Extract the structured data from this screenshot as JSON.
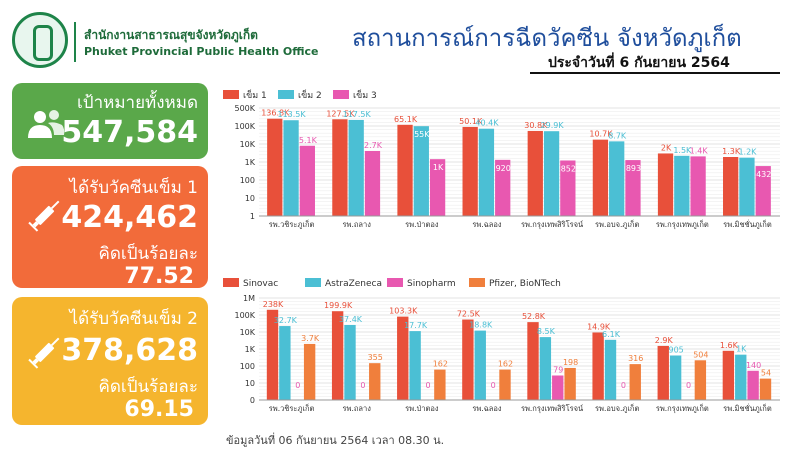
{
  "header": {
    "org_th": "สำนักงานสาธารณสุขจังหวัดภูเก็ต",
    "org_en": "Phuket Provincial Public Health Office",
    "title": "สถานการณ์การฉีดวัคซีน จังหวัดภูเก็ต",
    "subtitle": "ประจำวันที่ 6 กันยายน 2564"
  },
  "cards": {
    "target": {
      "label": "เป้าหมายทั้งหมด",
      "value": "547,584"
    },
    "dose1": {
      "label": "ได้รับวัคซีนเข็ม 1",
      "value": "424,462",
      "pct_label": "คิดเป็นร้อยละ",
      "pct": "77.52"
    },
    "dose2": {
      "label": "ได้รับวัคซีนเข็ม 2",
      "value": "378,628",
      "pct_label": "คิดเป็นร้อยละ",
      "pct": "69.15"
    }
  },
  "footnote": "ข้อมูลวันที่ 06 กันยายน 2564 เวลา 08.30 น.",
  "colors": {
    "green": "#5aa84a",
    "orange": "#f26b3a",
    "yellow": "#f5b52e",
    "red": "#e8503a",
    "cyan": "#4bbfd4",
    "pink": "#e858b0",
    "amber": "#f07f3c"
  },
  "chart_data": [
    {
      "type": "bar",
      "scale": "log",
      "categories": [
        "รพ.วชิระภูเก็ต",
        "รพ.ถลาง",
        "รพ.ป่าตอง",
        "รพ.ฉลอง",
        "รพ.กรุงเทพสิริโรจน์",
        "รพ.อบจ.ภูเก็ต",
        "รพ.กรุงเทพภูเก็ต",
        "รพ.มิชชั่นภูเก็ต"
      ],
      "yticks": [
        "1",
        "10",
        "100",
        "1K",
        "10K",
        "100K",
        "500K"
      ],
      "series": [
        {
          "name": "เข็ม 1",
          "color": "#e8503a",
          "values": [
            136800,
            127500,
            65100,
            50100,
            30800,
            10700,
            2000,
            1300
          ],
          "labels": [
            "136.8K",
            "127.5K",
            "65.1K",
            "50.1K",
            "30.8K",
            "10.7K",
            "2K",
            "1.3K"
          ]
        },
        {
          "name": "เข็ม 2",
          "color": "#4bbfd4",
          "values": [
            113500,
            117500,
            55000,
            40400,
            29900,
            8700,
            1500,
            1200
          ],
          "labels": [
            "113.5K",
            "117.5K",
            "55K",
            "40.4K",
            "29.9K",
            "8.7K",
            "1.5K",
            "1.2K"
          ]
        },
        {
          "name": "เข็ม 3",
          "color": "#e858b0",
          "values": [
            5100,
            2700,
            1000,
            920,
            852,
            893,
            1400,
            432
          ],
          "labels": [
            "5.1K",
            "2.7K",
            "1K",
            "920",
            "852",
            "893",
            "1.4K",
            "432"
          ]
        }
      ]
    },
    {
      "type": "bar",
      "scale": "log",
      "categories": [
        "รพ.วชิระภูเก็ต",
        "รพ.ถลาง",
        "รพ.ป่าตอง",
        "รพ.ฉลอง",
        "รพ.กรุงเทพสิริโรจน์",
        "รพ.อบจ.ภูเก็ต",
        "รพ.กรุงเทพภูเก็ต",
        "รพ.มิชชั่นภูเก็ต"
      ],
      "yticks": [
        "0",
        "10",
        "100",
        "1K",
        "10K",
        "100K",
        "1M"
      ],
      "series": [
        {
          "name": "Sinovac",
          "color": "#e8503a",
          "values": [
            238000,
            199900,
            103300,
            72500,
            52800,
            14900,
            2900,
            1600
          ],
          "labels": [
            "238K",
            "199.9K",
            "103.3K",
            "72.5K",
            "52.8K",
            "14.9K",
            "2.9K",
            "1.6K"
          ]
        },
        {
          "name": "AstraZeneca",
          "color": "#4bbfd4",
          "values": [
            32700,
            37400,
            17700,
            18800,
            8500,
            6100,
            905,
            1000
          ],
          "labels": [
            "32.7K",
            "37.4K",
            "17.7K",
            "18.8K",
            "8.5K",
            "6.1K",
            "905",
            "1K"
          ]
        },
        {
          "name": "Sinopharm",
          "color": "#e858b0",
          "values": [
            0,
            0,
            0,
            0,
            79,
            0,
            0,
            140
          ],
          "labels": [
            "0",
            "0",
            "0",
            "0",
            "79",
            "0",
            "0",
            "140"
          ]
        },
        {
          "name": "Pfizer, BioNTech",
          "color": "#f07f3c",
          "values": [
            3700,
            355,
            162,
            162,
            198,
            316,
            504,
            54
          ],
          "labels": [
            "3.7K",
            "355",
            "162",
            "162",
            "198",
            "316",
            "504",
            "54"
          ]
        }
      ]
    }
  ]
}
